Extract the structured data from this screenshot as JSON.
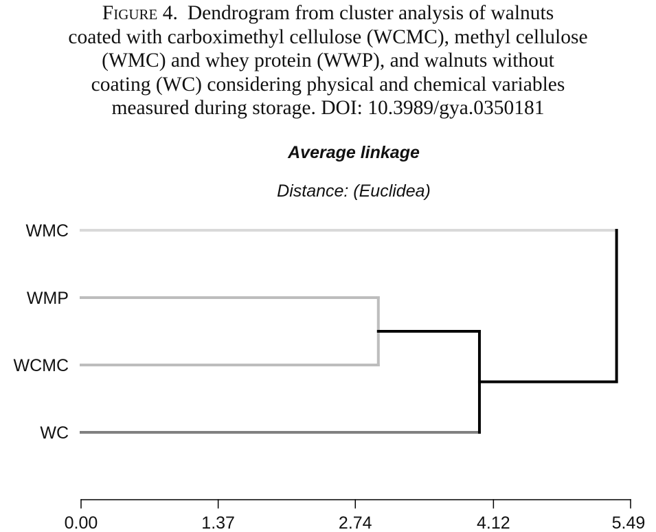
{
  "caption": {
    "label": "Figure 4.",
    "text": "Dendrogram from cluster analysis of walnuts coated with carboximethyl cellulose (WCMC), methyl cellulose (WMC) and whey protein (WWP), and walnuts without coating (WC) considering physical and chemical variables measured during storage. DOI: 10.3989/gya.0350181",
    "lines": [
      "Dendrogram from cluster analysis of walnuts",
      "coated with carboximethyl cellulose (WCMC), methyl cellulose",
      "(WMC) and whey protein (WWP), and walnuts without",
      "coating (WC) considering physical and chemical variables",
      "measured during storage.  DOI: 10.3989/gya.0350181"
    ]
  },
  "chart_data": {
    "type": "dendrogram",
    "title": "Average linkage",
    "subtitle": "Distance: (Euclidea)",
    "leaves": [
      "WMC",
      "WMP",
      "WCMC",
      "WC"
    ],
    "leaf_colors": [
      "#d9d9d9",
      "#bdbdbd",
      "#bdbdbd",
      "#808080"
    ],
    "merges": [
      {
        "children": [
          "WMP",
          "WCMC"
        ],
        "distance": 2.97,
        "color": "#bdbdbd"
      },
      {
        "children": [
          "WMP+WCMC",
          "WC"
        ],
        "distance": 3.98,
        "color": "#000000"
      },
      {
        "children": [
          "WMP+WCMC+WC",
          "WMC"
        ],
        "distance": 5.35,
        "color": "#000000"
      }
    ],
    "x_ticks": [
      "0.00",
      "1.37",
      "2.74",
      "4.12",
      "5.49"
    ],
    "xlim": [
      0,
      5.49
    ],
    "grid": false
  }
}
